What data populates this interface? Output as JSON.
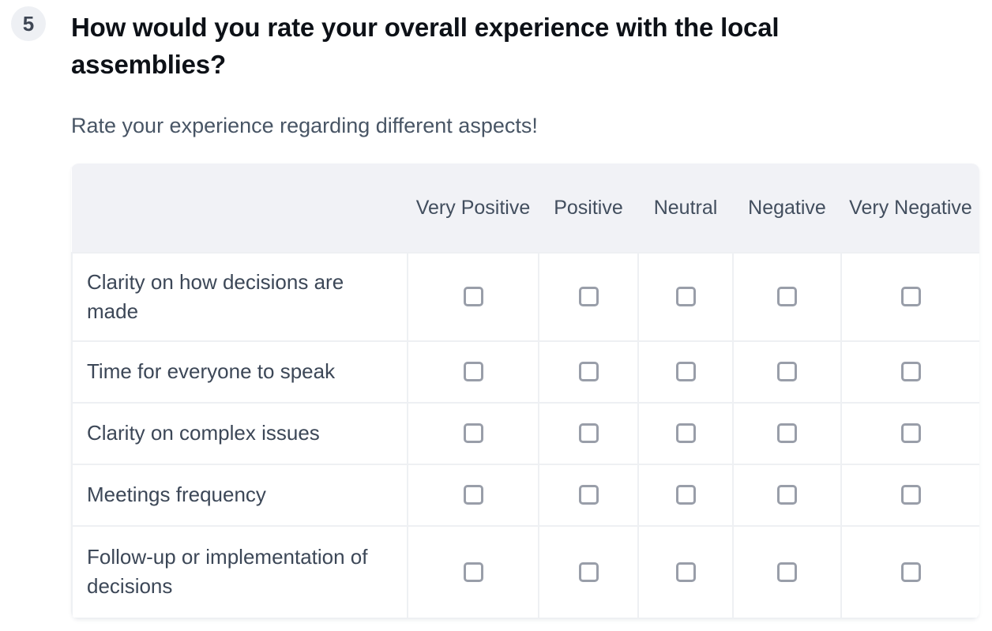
{
  "question": {
    "number": "5",
    "title": "How would you rate your overall experience with the local assemblies?",
    "subtitle": "Rate your experience regarding different aspects!"
  },
  "matrix": {
    "columns": [
      "Very Positive",
      "Positive",
      "Neutral",
      "Negative",
      "Very Negative"
    ],
    "rows": [
      "Clarity on how decisions are made",
      "Time for everyone to speak",
      "Clarity on complex issues",
      "Meetings frequency",
      "Follow-up or implementation of decisions"
    ],
    "checkbox_state": "unchecked"
  },
  "colors": {
    "header_bg": "#f1f2f6",
    "badge_bg": "#eef0f4",
    "title_text": "#0d1117",
    "subtitle_text": "#485565",
    "row_text": "#3c4757",
    "header_text": "#424e5e",
    "border": "#eef0f3",
    "checkbox_border": "#999ea9"
  }
}
